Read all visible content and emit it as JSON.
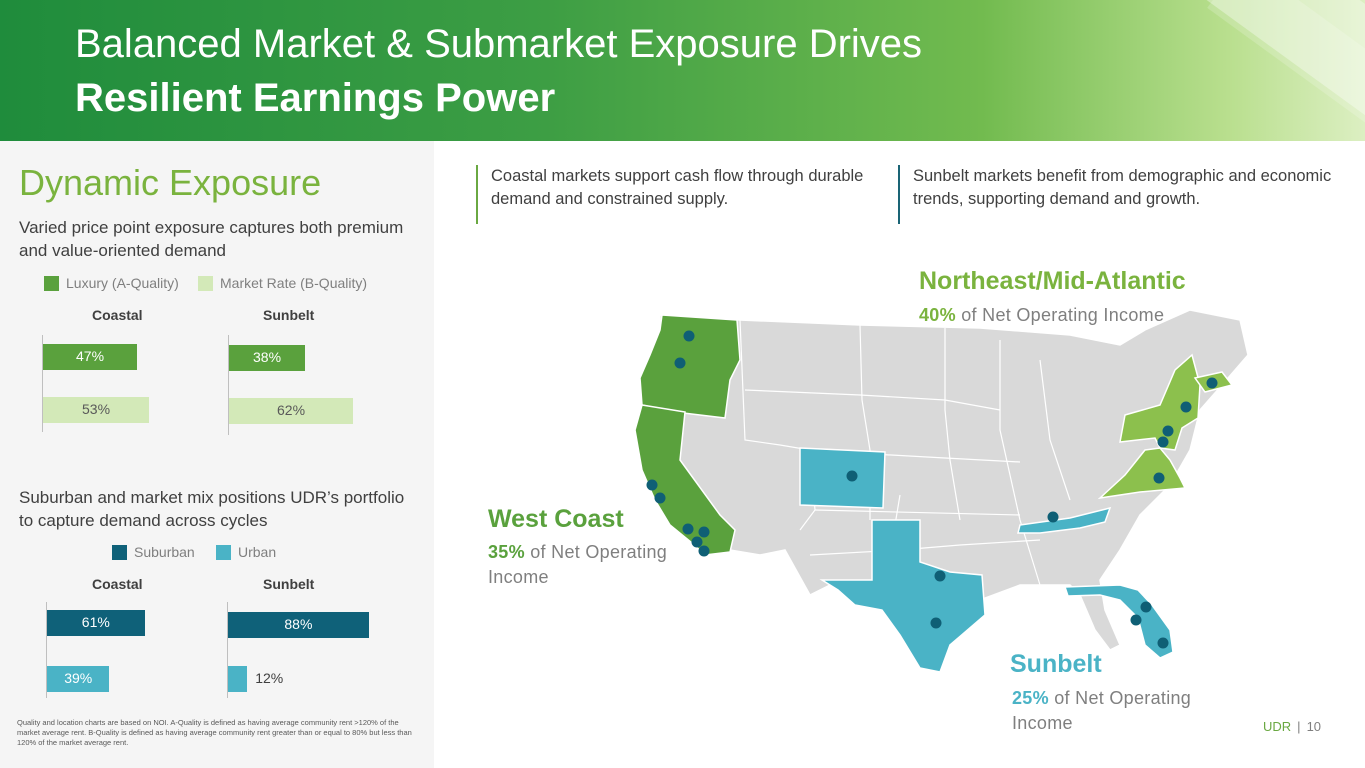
{
  "header": {
    "title_line1": "Balanced Market & Submarket Exposure Drives",
    "title_line2": "Resilient Earnings Power"
  },
  "left": {
    "title": "Dynamic Exposure",
    "subtitle1": "Varied price point exposure captures both premium and value-oriented demand",
    "subtitle2": "Suburban and market mix positions UDR’s portfolio to capture demand across cycles",
    "footnote": "Quality and location charts are based on NOI. A-Quality is defined as having average community rent >120% of the market average rent. B-Quality is defined as having average community rent greater than or equal to 80% but less than 120% of the market average rent."
  },
  "callouts": {
    "coastal": "Coastal markets support cash flow through durable demand and constrained supply.",
    "sunbelt": "Sunbelt markets benefit from demographic and economic trends, supporting demand and growth."
  },
  "regions": {
    "northeast": {
      "name": "Northeast/Mid-Atlantic",
      "pct": "40%",
      "text": "of Net Operating Income"
    },
    "west_coast": {
      "name": "West Coast",
      "pct": "35%",
      "text": "of Net Operating Income"
    },
    "sunbelt": {
      "name": "Sunbelt",
      "pct": "25%",
      "text": "of Net Operating Income"
    }
  },
  "footer": {
    "brand": "UDR",
    "separator": "|",
    "page": "10"
  },
  "colors": {
    "luxury": "#5aa13d",
    "market_rate": "#d3e9b8",
    "suburban": "#0f6179",
    "urban": "#4ab3c6",
    "map_base": "#d9d9d9",
    "map_west": "#5aa13d",
    "map_northeast": "#8cc04d",
    "map_sunbelt": "#4ab3c6",
    "dot": "#0f5f75"
  },
  "chart_data": [
    {
      "type": "bar",
      "orientation": "horizontal",
      "legend": [
        "Luxury (A-Quality)",
        "Market Rate (B-Quality)"
      ],
      "panels": [
        {
          "title": "Coastal",
          "series": [
            {
              "name": "Luxury (A-Quality)",
              "value": 47,
              "label": "47%"
            },
            {
              "name": "Market Rate (B-Quality)",
              "value": 53,
              "label": "53%"
            }
          ]
        },
        {
          "title": "Sunbelt",
          "series": [
            {
              "name": "Luxury (A-Quality)",
              "value": 38,
              "label": "38%"
            },
            {
              "name": "Market Rate (B-Quality)",
              "value": 62,
              "label": "62%"
            }
          ]
        }
      ]
    },
    {
      "type": "bar",
      "orientation": "horizontal",
      "legend": [
        "Suburban",
        "Urban"
      ],
      "panels": [
        {
          "title": "Coastal",
          "series": [
            {
              "name": "Suburban",
              "value": 61,
              "label": "61%"
            },
            {
              "name": "Urban",
              "value": 39,
              "label": "39%"
            }
          ]
        },
        {
          "title": "Sunbelt",
          "series": [
            {
              "name": "Suburban",
              "value": 88,
              "label": "88%"
            },
            {
              "name": "Urban",
              "value": 12,
              "label": "12%"
            }
          ]
        }
      ]
    }
  ]
}
